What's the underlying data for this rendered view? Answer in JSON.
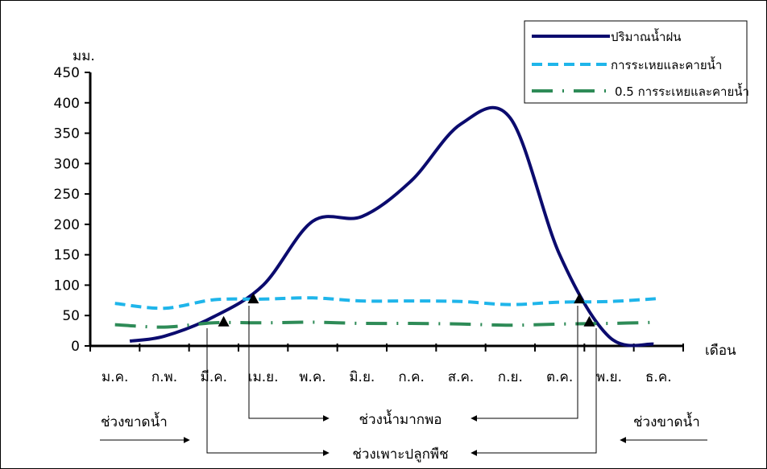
{
  "chart_data": {
    "type": "line",
    "y_unit": "มม.",
    "xlabel": "เดือน",
    "ylim": [
      0,
      450
    ],
    "yticks": [
      0,
      50,
      100,
      150,
      200,
      250,
      300,
      350,
      400,
      450
    ],
    "categories": [
      "ม.ค.",
      "ก.พ.",
      "มี.ค.",
      "เม.ย.",
      "พ.ค.",
      "มิ.ย.",
      "ก.ค.",
      "ส.ค.",
      "ก.ย.",
      "ต.ค.",
      "พ.ย.",
      "ธ.ค."
    ],
    "legend_position": "top-right",
    "grid": false,
    "series": [
      {
        "name": "ปริมาณน้ำฝน",
        "style": "solid",
        "color": "#0b0b6e",
        "points": [
          {
            "x": 0.3,
            "y": 8
          },
          {
            "x": 1,
            "y": 16
          },
          {
            "x": 2,
            "y": 48
          },
          {
            "x": 3,
            "y": 100
          },
          {
            "x": 4,
            "y": 205
          },
          {
            "x": 5,
            "y": 213
          },
          {
            "x": 6,
            "y": 272
          },
          {
            "x": 7,
            "y": 365
          },
          {
            "x": 8,
            "y": 375
          },
          {
            "x": 9,
            "y": 150
          },
          {
            "x": 10,
            "y": 15
          },
          {
            "x": 10.9,
            "y": 3
          }
        ]
      },
      {
        "name": "การระเหยและคายน้ำ",
        "style": "dashed",
        "color": "#1fb5ea",
        "points": [
          {
            "x": 0,
            "y": 70
          },
          {
            "x": 1,
            "y": 62
          },
          {
            "x": 2,
            "y": 76
          },
          {
            "x": 3,
            "y": 77
          },
          {
            "x": 4,
            "y": 79
          },
          {
            "x": 5,
            "y": 74
          },
          {
            "x": 6,
            "y": 74
          },
          {
            "x": 7,
            "y": 73
          },
          {
            "x": 8,
            "y": 68
          },
          {
            "x": 9,
            "y": 72
          },
          {
            "x": 10,
            "y": 73
          },
          {
            "x": 11,
            "y": 78
          }
        ]
      },
      {
        "name": "0.5 การระเหยและคายน้ำ",
        "style": "dashdot",
        "color": "#2e8b57",
        "points": [
          {
            "x": 0,
            "y": 35
          },
          {
            "x": 1,
            "y": 31
          },
          {
            "x": 2,
            "y": 38
          },
          {
            "x": 3,
            "y": 38
          },
          {
            "x": 4,
            "y": 39
          },
          {
            "x": 5,
            "y": 37
          },
          {
            "x": 6,
            "y": 37
          },
          {
            "x": 7,
            "y": 36
          },
          {
            "x": 8,
            "y": 34
          },
          {
            "x": 9,
            "y": 36
          },
          {
            "x": 10,
            "y": 37
          },
          {
            "x": 11,
            "y": 39
          }
        ]
      }
    ],
    "markers": [
      {
        "x": 2.2,
        "y": 40
      },
      {
        "x": 2.8,
        "y": 78
      },
      {
        "x": 9.4,
        "y": 78
      },
      {
        "x": 9.6,
        "y": 40
      }
    ],
    "annotations": {
      "dry_left": "ช่วงขาดน้ำ",
      "dry_right": "ช่วงขาดน้ำ",
      "water_surplus": "ช่วงน้ำมากพอ",
      "growing_period": "ช่วงเพาะปลูกพืช"
    }
  }
}
